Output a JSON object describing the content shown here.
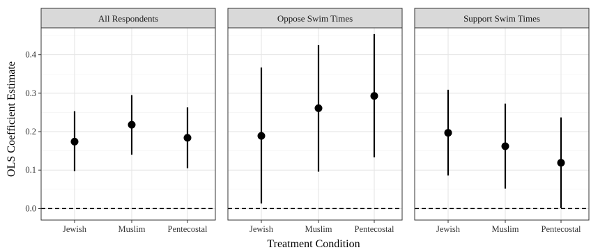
{
  "chart_data": {
    "type": "scatter",
    "subtype": "point-range (coefficient plot with confidence intervals), faceted",
    "xlabel": "Treatment Condition",
    "ylabel": "OLS Coefficient Estimate",
    "ylim": [
      -0.03,
      0.47
    ],
    "y_ticks": [
      0.0,
      0.1,
      0.2,
      0.3,
      0.4
    ],
    "y_tick_labels": [
      "0.0",
      "0.1",
      "0.2",
      "0.3",
      "0.4"
    ],
    "categories": [
      "Jewish",
      "Muslim",
      "Pentecostal"
    ],
    "reference_line": {
      "y": 0,
      "style": "dashed"
    },
    "grid": true,
    "point_color": "#000000",
    "strip_color": "#d9d9d9",
    "panels": [
      {
        "title": "All Respondents",
        "points": [
          {
            "category": "Jewish",
            "estimate": 0.174,
            "lower": 0.097,
            "upper": 0.253
          },
          {
            "category": "Muslim",
            "estimate": 0.218,
            "lower": 0.14,
            "upper": 0.295
          },
          {
            "category": "Pentecostal",
            "estimate": 0.184,
            "lower": 0.105,
            "upper": 0.263
          }
        ]
      },
      {
        "title": "Oppose Swim Times",
        "points": [
          {
            "category": "Jewish",
            "estimate": 0.189,
            "lower": 0.013,
            "upper": 0.367
          },
          {
            "category": "Muslim",
            "estimate": 0.261,
            "lower": 0.096,
            "upper": 0.425
          },
          {
            "category": "Pentecostal",
            "estimate": 0.293,
            "lower": 0.133,
            "upper": 0.454
          }
        ]
      },
      {
        "title": "Support Swim Times",
        "points": [
          {
            "category": "Jewish",
            "estimate": 0.197,
            "lower": 0.086,
            "upper": 0.309
          },
          {
            "category": "Muslim",
            "estimate": 0.162,
            "lower": 0.052,
            "upper": 0.273
          },
          {
            "category": "Pentecostal",
            "estimate": 0.119,
            "lower": 0.001,
            "upper": 0.237
          }
        ]
      }
    ]
  }
}
